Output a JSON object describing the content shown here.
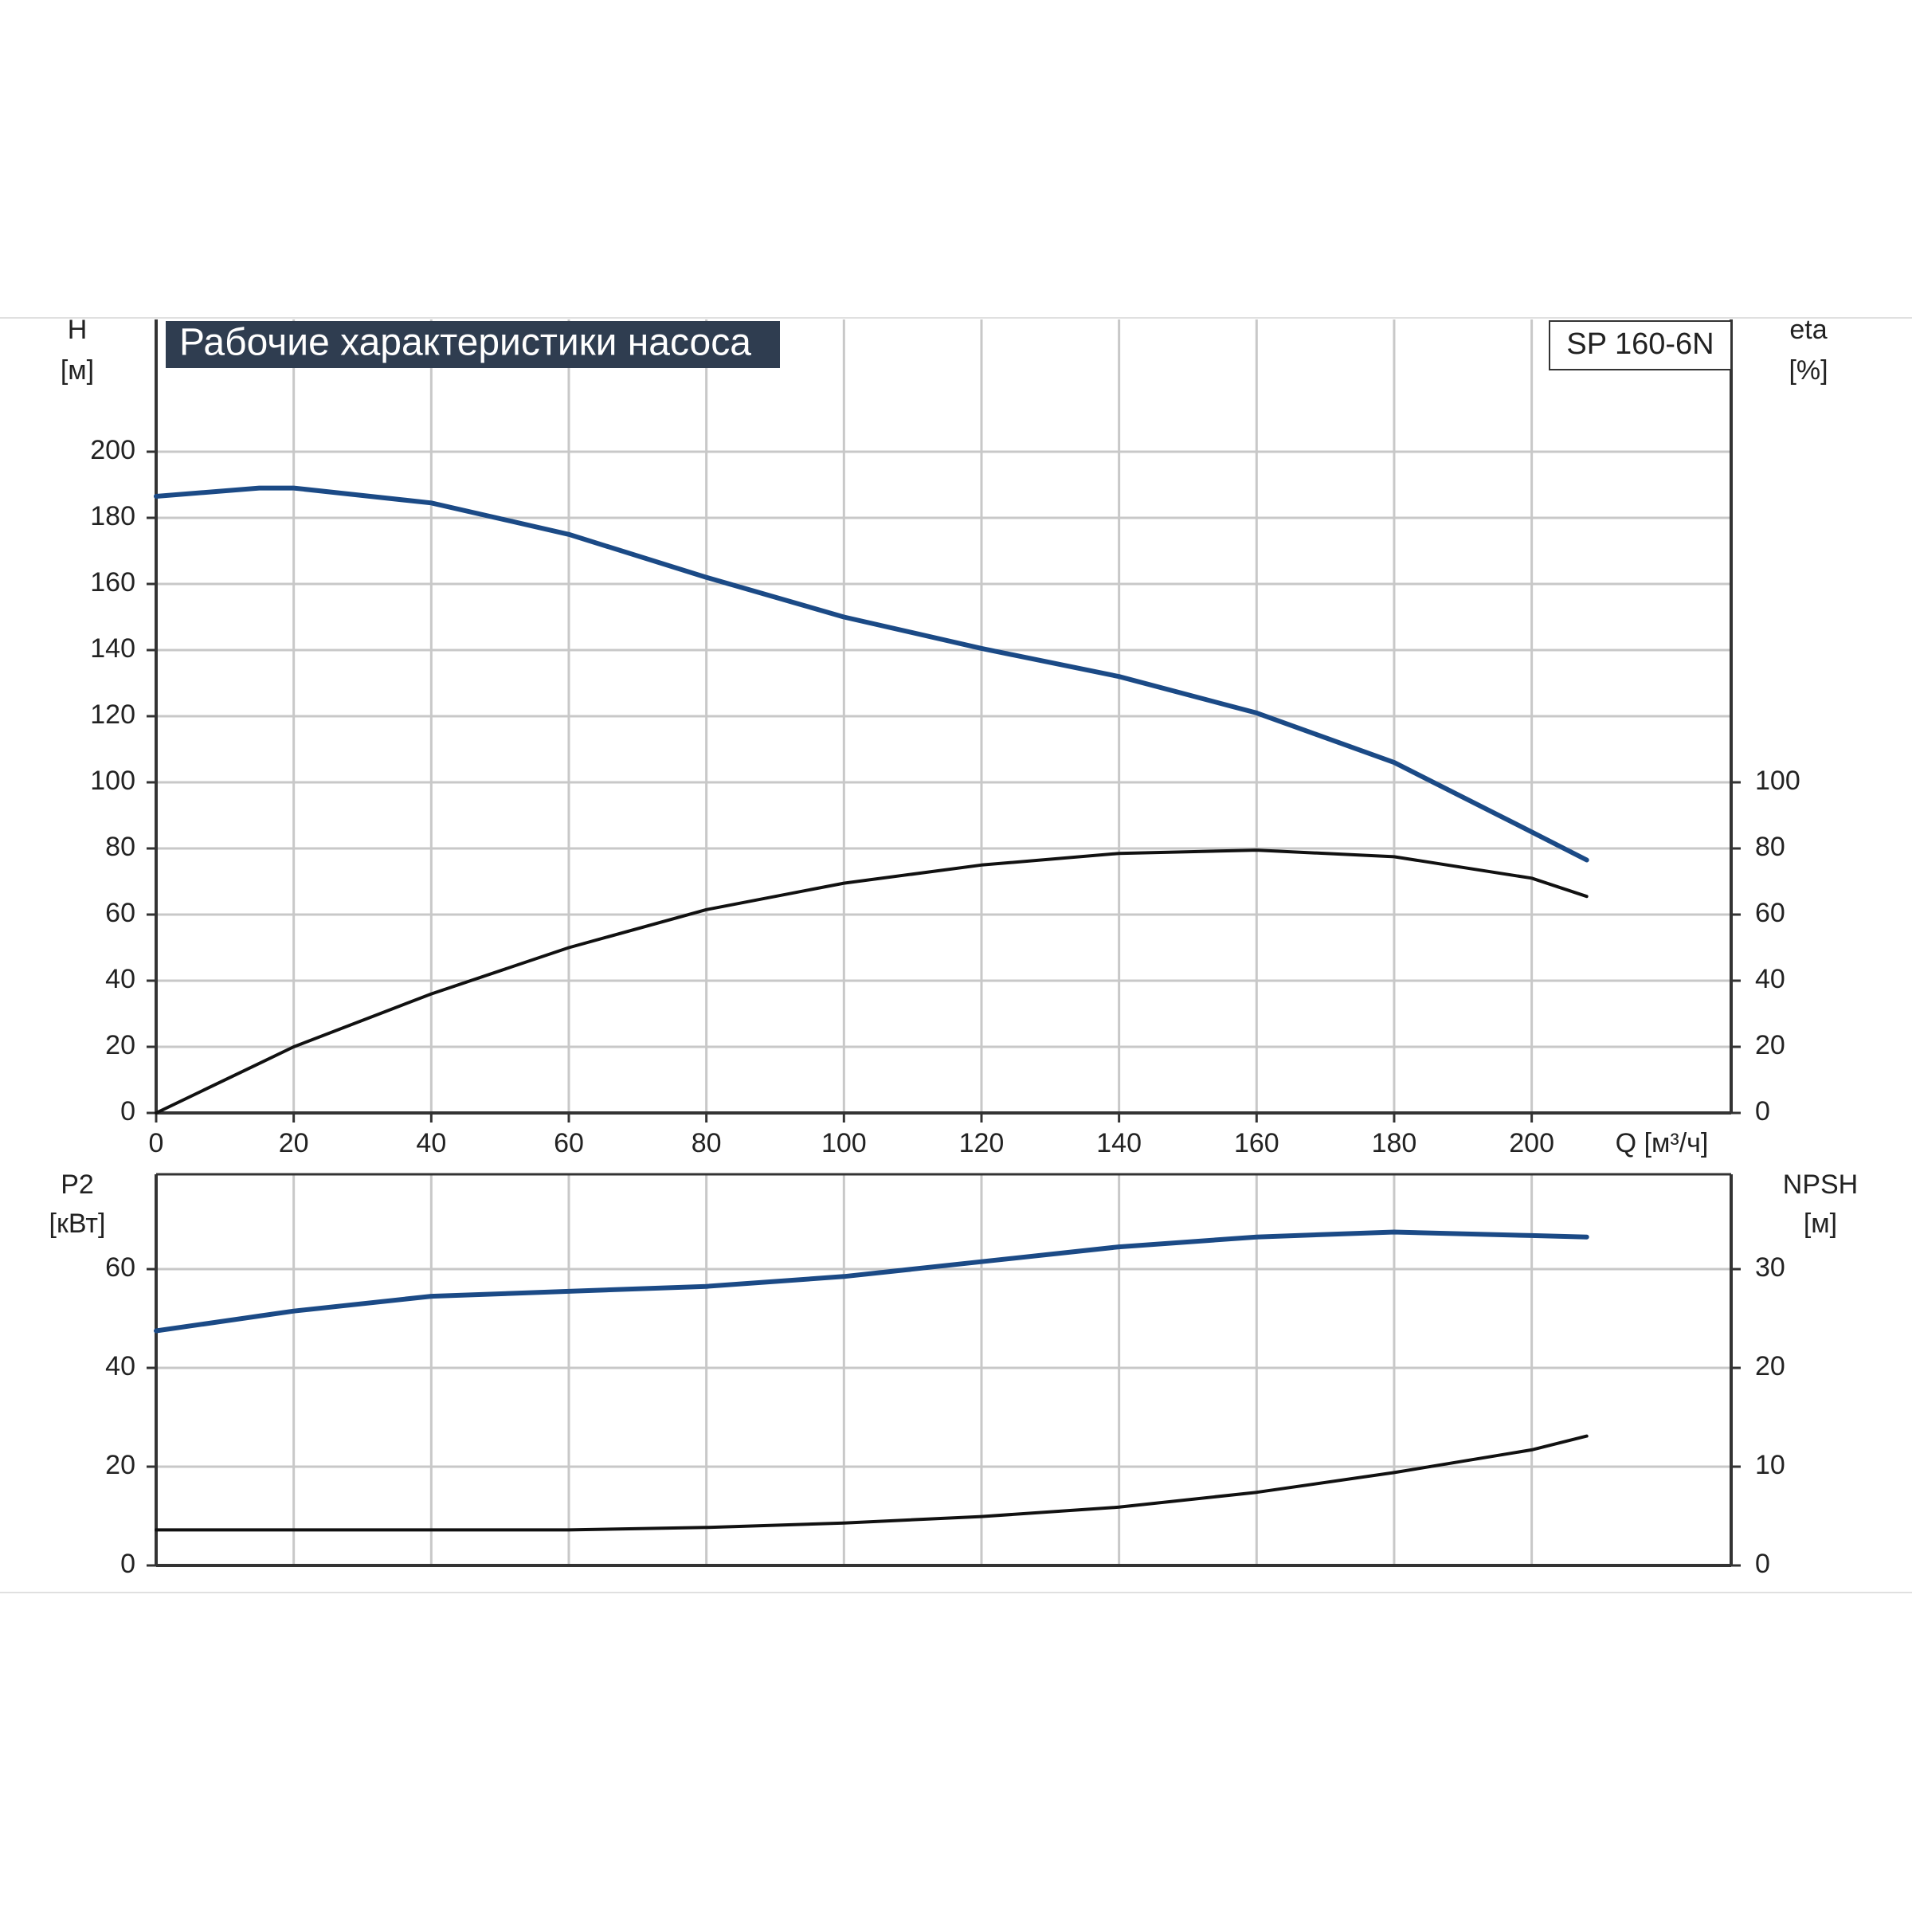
{
  "chart_data": [
    {
      "type": "line",
      "title": "Рабочие характеристики насоса",
      "annotation": "SP 160-6N",
      "xlabel": "Q [м³/ч]",
      "ylabel": [
        "H",
        "[м]"
      ],
      "y2label": [
        "eta",
        "[%]"
      ],
      "x": [
        0,
        15,
        20,
        40,
        60,
        80,
        100,
        120,
        140,
        160,
        180,
        200,
        208
      ],
      "xlim": [
        0,
        229
      ],
      "xticks": [
        0,
        20,
        40,
        60,
        80,
        100,
        120,
        140,
        160,
        180,
        200
      ],
      "ylim": [
        0,
        240
      ],
      "yticks": [
        0,
        20,
        40,
        60,
        80,
        100,
        120,
        140,
        160,
        180,
        200
      ],
      "y2lim": [
        0,
        240
      ],
      "y2ticks": [
        0,
        20,
        40,
        60,
        80,
        100
      ],
      "grid": true,
      "series": [
        {
          "name": "H",
          "color": "#1b4a86",
          "values": [
            186.5,
            189,
            189,
            184.5,
            175,
            162,
            150,
            140.5,
            132,
            121,
            106,
            85,
            76.5
          ]
        },
        {
          "name": "eta",
          "color": "#111111",
          "axis": "y2",
          "values": [
            0,
            15,
            20,
            36,
            50,
            61.5,
            69.5,
            75,
            78.5,
            79.5,
            77.5,
            71,
            65.5
          ]
        }
      ]
    },
    {
      "type": "line",
      "ylabel": [
        "P2",
        "[кВт]"
      ],
      "y2label": [
        "NPSH",
        "[м]"
      ],
      "x": [
        0,
        15,
        20,
        40,
        60,
        80,
        100,
        120,
        140,
        160,
        180,
        200,
        208
      ],
      "xlim": [
        0,
        229
      ],
      "ylim": [
        0,
        79.2
      ],
      "yticks": [
        0,
        20,
        40,
        60
      ],
      "y2lim": [
        0,
        39.6
      ],
      "y2ticks": [
        0,
        10,
        20,
        30
      ],
      "grid": true,
      "series": [
        {
          "name": "P2",
          "color": "#1b4a86",
          "values": [
            47.5,
            50.5,
            51.5,
            54.5,
            55.5,
            56.5,
            58.5,
            61.5,
            64.5,
            66.5,
            67.5,
            66.8,
            66.5
          ]
        },
        {
          "name": "NPSH",
          "color": "#111111",
          "axis": "y2",
          "values": [
            3.6,
            3.6,
            3.6,
            3.6,
            3.6,
            3.85,
            4.3,
            4.95,
            5.9,
            7.4,
            9.4,
            11.7,
            13.1
          ]
        }
      ]
    }
  ]
}
